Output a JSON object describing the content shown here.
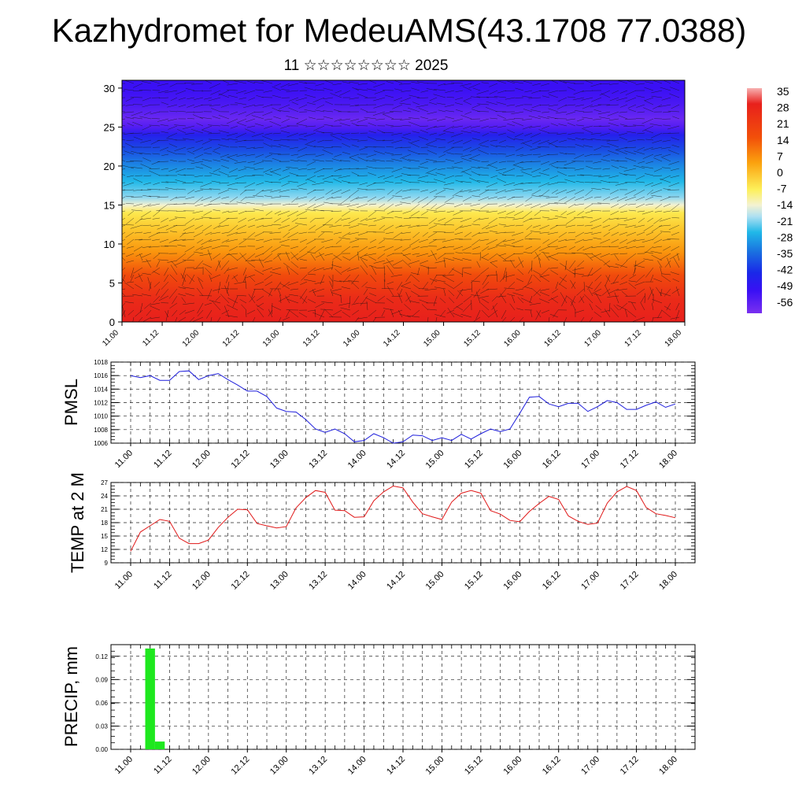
{
  "page": {
    "title": "Kazhydromet for MedeuAMS(43.1708 77.0388)",
    "subtitle": "11 ☆☆☆☆☆☆☆☆ 2025"
  },
  "colors": {
    "pmsl_line": "#1f1fdc",
    "temp_line": "#e01818",
    "precip_bar": "#1ee81e"
  },
  "chart_data": [
    {
      "type": "heatmap",
      "name": "temperature-wind-cross-section",
      "x_tick_labels": [
        "11.00",
        "11.12",
        "12.00",
        "12.12",
        "13.00",
        "13.12",
        "14.00",
        "14.12",
        "15.00",
        "15.12",
        "16.00",
        "16.12",
        "17.00",
        "17.12",
        "18.00"
      ],
      "y_tick_labels": [
        "0",
        "5",
        "10",
        "15",
        "20",
        "25",
        "30"
      ],
      "ylim": [
        0,
        31
      ],
      "grid": false,
      "legend": "right",
      "colorbar": {
        "labels": [
          "35",
          "28",
          "21",
          "14",
          "7",
          "0",
          "-7",
          "-14",
          "-21",
          "-28",
          "-35",
          "-42",
          "-49",
          "-56"
        ]
      },
      "temperature_profile": {
        "levels": [
          0,
          3,
          6,
          9,
          12,
          14,
          15,
          16,
          18,
          20,
          22,
          24,
          25,
          26,
          28,
          30
        ],
        "values": [
          30,
          28,
          22,
          15,
          8,
          0,
          -10,
          -17,
          -24,
          -31,
          -40,
          -48,
          -55,
          -58,
          -54,
          -52
        ]
      },
      "overlay": "wind-vectors"
    },
    {
      "type": "line",
      "ylabel": "PMSL",
      "x_tick_labels": [
        "11.00",
        "11.12",
        "12.00",
        "12.12",
        "13.00",
        "13.12",
        "14.00",
        "14.12",
        "15.00",
        "15.12",
        "16.00",
        "16.12",
        "17.00",
        "17.12",
        "18.00"
      ],
      "y_tick_labels": [
        "1006",
        "1008",
        "1010",
        "1012",
        "1014",
        "1016",
        "1018"
      ],
      "ylim": [
        1006,
        1018
      ],
      "grid": true,
      "x": [
        0,
        3,
        6,
        9,
        12,
        15,
        18,
        21,
        24,
        27,
        30,
        33,
        36,
        39,
        42,
        45,
        48,
        51,
        54,
        57,
        60,
        63,
        66,
        69,
        72,
        75,
        78,
        81,
        84,
        87,
        90,
        93,
        96,
        99,
        102,
        105,
        108,
        111,
        114,
        117,
        120,
        123,
        126,
        129,
        132,
        135,
        138,
        141,
        144,
        147,
        150,
        153,
        156,
        159,
        162,
        165,
        168
      ],
      "values": [
        1016.0,
        1015.7,
        1016.0,
        1015.3,
        1015.3,
        1016.6,
        1016.7,
        1015.4,
        1016.0,
        1016.3,
        1015.4,
        1014.6,
        1013.7,
        1013.7,
        1012.9,
        1011.2,
        1010.7,
        1010.6,
        1009.5,
        1008.1,
        1007.6,
        1008.1,
        1007.4,
        1006.2,
        1006.4,
        1007.4,
        1006.8,
        1006.0,
        1006.2,
        1007.2,
        1007.1,
        1006.4,
        1006.8,
        1006.4,
        1007.3,
        1006.6,
        1007.4,
        1008.1,
        1007.7,
        1008.1,
        1010.4,
        1012.8,
        1012.9,
        1011.8,
        1011.4,
        1011.9,
        1011.9,
        1010.7,
        1011.4,
        1012.3,
        1012.0,
        1011.0,
        1011.0,
        1011.6,
        1012.1,
        1011.3,
        1011.8
      ]
    },
    {
      "type": "line",
      "ylabel": "TEMP at 2 M",
      "x_tick_labels": [
        "11.00",
        "11.12",
        "12.00",
        "12.12",
        "13.00",
        "13.12",
        "14.00",
        "14.12",
        "15.00",
        "15.12",
        "16.00",
        "16.12",
        "17.00",
        "17.12",
        "18.00"
      ],
      "y_tick_labels": [
        "9",
        "12",
        "15",
        "18",
        "21",
        "24",
        "27"
      ],
      "ylim": [
        9,
        27
      ],
      "grid": true,
      "x": [
        0,
        3,
        6,
        9,
        12,
        15,
        18,
        21,
        24,
        27,
        30,
        33,
        36,
        39,
        42,
        45,
        48,
        51,
        54,
        57,
        60,
        63,
        66,
        69,
        72,
        75,
        78,
        81,
        84,
        87,
        90,
        93,
        96,
        99,
        102,
        105,
        108,
        111,
        114,
        117,
        120,
        123,
        126,
        129,
        132,
        135,
        138,
        141,
        144,
        147,
        150,
        153,
        156,
        159,
        162,
        165,
        168
      ],
      "values": [
        11.6,
        15.9,
        17.3,
        18.7,
        18.3,
        14.5,
        13.3,
        13.3,
        14.1,
        16.9,
        19.2,
        21.0,
        20.9,
        17.8,
        17.3,
        16.8,
        17.1,
        21.3,
        23.6,
        25.2,
        24.8,
        20.8,
        20.7,
        19.2,
        19.3,
        22.9,
        24.9,
        26.2,
        25.8,
        22.6,
        20.0,
        19.3,
        18.7,
        22.6,
        24.6,
        25.2,
        24.6,
        20.7,
        19.9,
        18.5,
        18.2,
        20.5,
        22.3,
        23.9,
        23.2,
        19.5,
        18.3,
        17.6,
        17.9,
        22.4,
        24.9,
        26.1,
        25.2,
        21.4,
        20.0,
        19.6,
        19.1
      ]
    },
    {
      "type": "bar",
      "ylabel": "PRECIP, mm",
      "x_tick_labels": [
        "11.00",
        "11.12",
        "12.00",
        "12.12",
        "13.00",
        "13.12",
        "14.00",
        "14.12",
        "15.00",
        "15.12",
        "16.00",
        "16.12",
        "17.00",
        "17.12",
        "18.00"
      ],
      "y_tick_labels": [
        "0.00",
        "0.03",
        "0.06",
        "0.09",
        "0.12"
      ],
      "ylim": [
        0,
        0.135
      ],
      "grid": true,
      "x": [
        6,
        9
      ],
      "values": [
        0.13,
        0.01
      ]
    }
  ]
}
